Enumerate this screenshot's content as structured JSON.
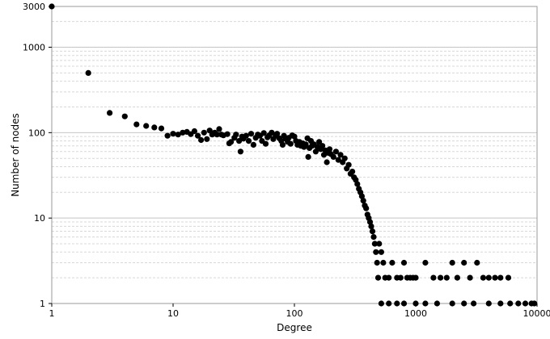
{
  "chart_data": {
    "type": "scatter",
    "title": "",
    "xlabel": "Degree",
    "ylabel": "Number of nodes",
    "x_scale": "log",
    "y_scale": "log",
    "xlim": [
      1,
      10000
    ],
    "ylim": [
      1,
      3000
    ],
    "x_ticks": [
      "1",
      "10",
      "100",
      "1000",
      "10000"
    ],
    "y_ticks": [
      "1",
      "10",
      "100",
      "1000",
      "3000"
    ],
    "grid": true,
    "legend": "none",
    "marker_color": "#000000",
    "series": [
      {
        "points": [
          [
            1,
            3000
          ],
          [
            2,
            500
          ],
          [
            3,
            170
          ],
          [
            4,
            155
          ],
          [
            5,
            125
          ],
          [
            6,
            120
          ],
          [
            7,
            115
          ],
          [
            8,
            112
          ],
          [
            9,
            92
          ],
          [
            10,
            97
          ],
          [
            11,
            95
          ],
          [
            12,
            100
          ],
          [
            13,
            102
          ],
          [
            14,
            96
          ],
          [
            15,
            104
          ],
          [
            16,
            92
          ],
          [
            17,
            82
          ],
          [
            18,
            100
          ],
          [
            19,
            84
          ],
          [
            20,
            106
          ],
          [
            21,
            95
          ],
          [
            22,
            100
          ],
          [
            23,
            95
          ],
          [
            24,
            110
          ],
          [
            25,
            95
          ],
          [
            26,
            93
          ],
          [
            28,
            96
          ],
          [
            29,
            75
          ],
          [
            30,
            78
          ],
          [
            32,
            87
          ],
          [
            33,
            95
          ],
          [
            35,
            80
          ],
          [
            36,
            60
          ],
          [
            37,
            90
          ],
          [
            38,
            85
          ],
          [
            40,
            92
          ],
          [
            42,
            80
          ],
          [
            44,
            97
          ],
          [
            46,
            72
          ],
          [
            48,
            87
          ],
          [
            50,
            95
          ],
          [
            52,
            92
          ],
          [
            54,
            80
          ],
          [
            56,
            99
          ],
          [
            58,
            74
          ],
          [
            60,
            88
          ],
          [
            62,
            93
          ],
          [
            65,
            100
          ],
          [
            67,
            84
          ],
          [
            70,
            92
          ],
          [
            72,
            97
          ],
          [
            75,
            86
          ],
          [
            78,
            80
          ],
          [
            80,
            72
          ],
          [
            82,
            92
          ],
          [
            85,
            85
          ],
          [
            88,
            78
          ],
          [
            90,
            87
          ],
          [
            93,
            74
          ],
          [
            96,
            93
          ],
          [
            100,
            90
          ],
          [
            103,
            80
          ],
          [
            106,
            72
          ],
          [
            110,
            78
          ],
          [
            113,
            70
          ],
          [
            117,
            75
          ],
          [
            120,
            68
          ],
          [
            124,
            73
          ],
          [
            128,
            86
          ],
          [
            130,
            52
          ],
          [
            133,
            66
          ],
          [
            137,
            80
          ],
          [
            140,
            70
          ],
          [
            145,
            73
          ],
          [
            150,
            60
          ],
          [
            155,
            68
          ],
          [
            160,
            78
          ],
          [
            165,
            64
          ],
          [
            170,
            70
          ],
          [
            175,
            55
          ],
          [
            180,
            62
          ],
          [
            185,
            45
          ],
          [
            190,
            58
          ],
          [
            195,
            64
          ],
          [
            200,
            56
          ],
          [
            210,
            52
          ],
          [
            220,
            60
          ],
          [
            230,
            48
          ],
          [
            240,
            55
          ],
          [
            250,
            45
          ],
          [
            260,
            50
          ],
          [
            270,
            38
          ],
          [
            280,
            42
          ],
          [
            290,
            33
          ],
          [
            300,
            35
          ],
          [
            310,
            30
          ],
          [
            320,
            28
          ],
          [
            330,
            25
          ],
          [
            340,
            22
          ],
          [
            350,
            20
          ],
          [
            360,
            18
          ],
          [
            370,
            16
          ],
          [
            380,
            14
          ],
          [
            390,
            13
          ],
          [
            400,
            11
          ],
          [
            410,
            10
          ],
          [
            420,
            9
          ],
          [
            430,
            8
          ],
          [
            440,
            7
          ],
          [
            450,
            6
          ],
          [
            460,
            5
          ],
          [
            470,
            4
          ],
          [
            480,
            3
          ],
          [
            490,
            2
          ],
          [
            500,
            5
          ],
          [
            520,
            4
          ],
          [
            540,
            3
          ],
          [
            560,
            2
          ],
          [
            600,
            2
          ],
          [
            640,
            3
          ],
          [
            700,
            2
          ],
          [
            750,
            2
          ],
          [
            800,
            3
          ],
          [
            850,
            2
          ],
          [
            900,
            2
          ],
          [
            950,
            2
          ],
          [
            1000,
            2
          ],
          [
            1200,
            3
          ],
          [
            1400,
            2
          ],
          [
            1600,
            2
          ],
          [
            1800,
            2
          ],
          [
            2000,
            3
          ],
          [
            2200,
            2
          ],
          [
            2500,
            3
          ],
          [
            2800,
            2
          ],
          [
            3200,
            3
          ],
          [
            3600,
            2
          ],
          [
            4000,
            2
          ],
          [
            4500,
            2
          ],
          [
            5000,
            2
          ],
          [
            5800,
            2
          ],
          [
            520,
            1
          ],
          [
            600,
            1
          ],
          [
            700,
            1
          ],
          [
            800,
            1
          ],
          [
            1000,
            1
          ],
          [
            1200,
            1
          ],
          [
            1500,
            1
          ],
          [
            2000,
            1
          ],
          [
            2500,
            1
          ],
          [
            3000,
            1
          ],
          [
            4000,
            1
          ],
          [
            5000,
            1
          ],
          [
            6000,
            1
          ],
          [
            7000,
            1
          ],
          [
            8000,
            1
          ],
          [
            9000,
            1
          ],
          [
            9500,
            1
          ]
        ]
      }
    ]
  }
}
